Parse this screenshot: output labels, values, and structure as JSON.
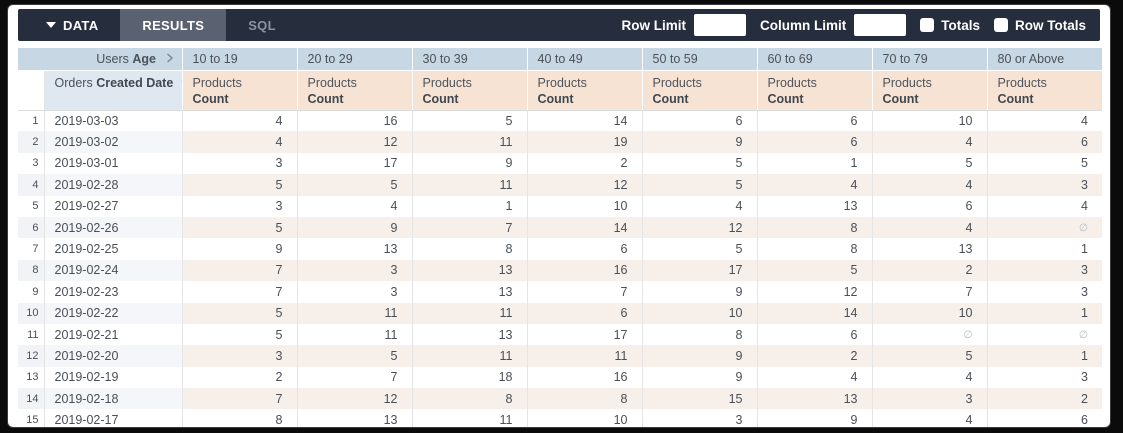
{
  "toolbar": {
    "tabs": {
      "data": "DATA",
      "results": "RESULTS",
      "sql": "SQL"
    },
    "row_limit_label": "Row Limit",
    "row_limit_value": "",
    "column_limit_label": "Column Limit",
    "column_limit_value": "",
    "totals_label": "Totals",
    "totals_checked": false,
    "row_totals_label": "Row Totals",
    "row_totals_checked": false
  },
  "pivot": {
    "dimension_header_prefix": "Users",
    "dimension_header_bold": "Age",
    "row_dimension_prefix": "Orders",
    "row_dimension_bold": "Created Date",
    "measure_prefix": "Products",
    "measure_bold": "Count",
    "age_buckets": [
      "10 to 19",
      "20 to 29",
      "30 to 39",
      "40 to 49",
      "50 to 59",
      "60 to 69",
      "70 to 79",
      "80 or Above"
    ],
    "null_symbol": "∅",
    "rows": [
      {
        "num": "1",
        "date": "2019-03-03",
        "values": [
          "4",
          "16",
          "5",
          "14",
          "6",
          "6",
          "10",
          "4"
        ]
      },
      {
        "num": "2",
        "date": "2019-03-02",
        "values": [
          "4",
          "12",
          "11",
          "19",
          "9",
          "6",
          "4",
          "6"
        ]
      },
      {
        "num": "3",
        "date": "2019-03-01",
        "values": [
          "3",
          "17",
          "9",
          "2",
          "5",
          "1",
          "5",
          "5"
        ]
      },
      {
        "num": "4",
        "date": "2019-02-28",
        "values": [
          "5",
          "5",
          "11",
          "12",
          "5",
          "4",
          "4",
          "3"
        ]
      },
      {
        "num": "5",
        "date": "2019-02-27",
        "values": [
          "3",
          "4",
          "1",
          "10",
          "4",
          "13",
          "6",
          "4"
        ]
      },
      {
        "num": "6",
        "date": "2019-02-26",
        "values": [
          "5",
          "9",
          "7",
          "14",
          "12",
          "8",
          "4",
          "∅"
        ]
      },
      {
        "num": "7",
        "date": "2019-02-25",
        "values": [
          "9",
          "13",
          "8",
          "6",
          "5",
          "8",
          "13",
          "1"
        ]
      },
      {
        "num": "8",
        "date": "2019-02-24",
        "values": [
          "7",
          "3",
          "13",
          "16",
          "17",
          "5",
          "2",
          "3"
        ]
      },
      {
        "num": "9",
        "date": "2019-02-23",
        "values": [
          "7",
          "3",
          "13",
          "7",
          "9",
          "12",
          "7",
          "3"
        ]
      },
      {
        "num": "10",
        "date": "2019-02-22",
        "values": [
          "5",
          "11",
          "11",
          "6",
          "10",
          "14",
          "10",
          "1"
        ]
      },
      {
        "num": "11",
        "date": "2019-02-21",
        "values": [
          "5",
          "11",
          "13",
          "17",
          "8",
          "6",
          "∅",
          "∅"
        ]
      },
      {
        "num": "12",
        "date": "2019-02-20",
        "values": [
          "3",
          "5",
          "11",
          "11",
          "9",
          "2",
          "5",
          "1"
        ]
      },
      {
        "num": "13",
        "date": "2019-02-19",
        "values": [
          "2",
          "7",
          "18",
          "16",
          "9",
          "4",
          "4",
          "3"
        ]
      },
      {
        "num": "14",
        "date": "2019-02-18",
        "values": [
          "7",
          "12",
          "8",
          "8",
          "15",
          "13",
          "3",
          "2"
        ]
      },
      {
        "num": "15",
        "date": "2019-02-17",
        "values": [
          "8",
          "13",
          "11",
          "10",
          "3",
          "9",
          "4",
          "6"
        ]
      }
    ]
  },
  "colors": {
    "toolbar_bg": "#262e3d",
    "selected_tab_bg": "#5a6170",
    "pivot_header_blue": "#c8d7e4",
    "dimension_header_blue": "#dfe8f0",
    "measure_header_peach": "#f7e3d4",
    "stripe_peach": "#f7f0ea",
    "stripe_blue_gray": "#f5f6f9"
  }
}
